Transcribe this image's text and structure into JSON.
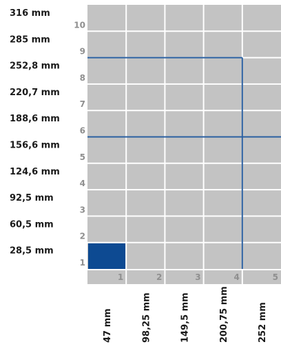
{
  "diagram": {
    "columns": 5,
    "rows": 10,
    "row_heights_mm": [
      "28,5 mm",
      "60,5 mm",
      "92,5 mm",
      "124,6 mm",
      "156,6 mm",
      "188,6 mm",
      "220,7 mm",
      "252,8 mm",
      "285 mm",
      "316 mm"
    ],
    "col_widths_mm": [
      "47 mm",
      "98,25 mm",
      "149,5 mm",
      "200,75 mm",
      "252 mm"
    ],
    "row_numbers": [
      "1",
      "2",
      "3",
      "4",
      "5",
      "6",
      "7",
      "8",
      "9",
      "10"
    ],
    "col_numbers": [
      "1",
      "2",
      "3",
      "4",
      "5"
    ],
    "selected_cell": {
      "col": 1,
      "row": 1
    },
    "outline_rect": {
      "col_from": 1,
      "col_to": 4,
      "row_from": 1,
      "row_to": 8
    },
    "horizontal_line_at_row": 5,
    "colors": {
      "cell": "#c3c3c3",
      "grid_line": "#ffffff",
      "selected": "#0d4a92",
      "outline": "#2a5fa0",
      "index_text": "#8f8f8f",
      "label_text": "#1a1a1a",
      "background": "#ffffff"
    }
  }
}
